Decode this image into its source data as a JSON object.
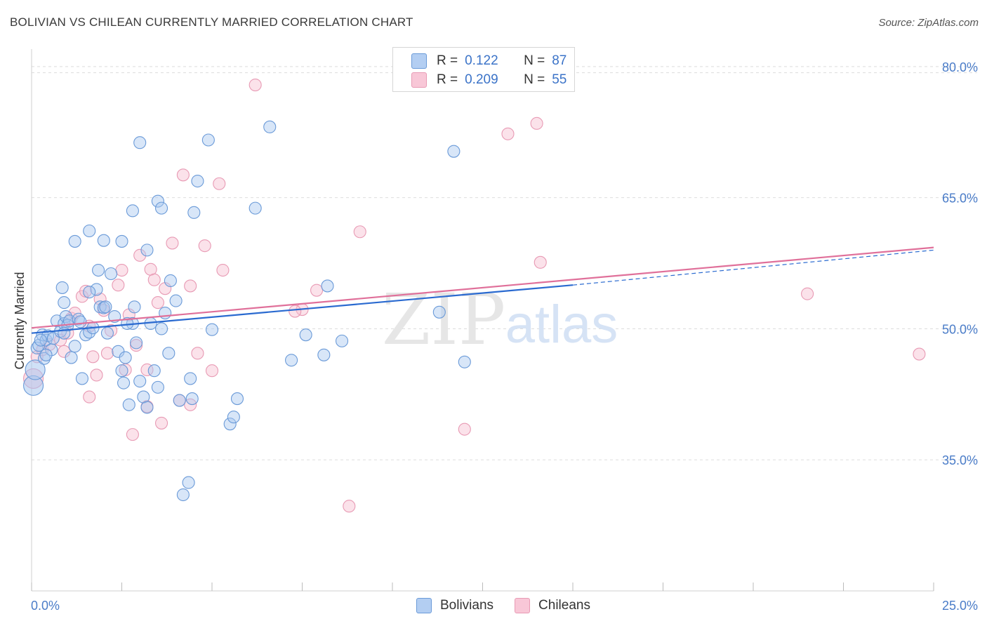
{
  "title": "BOLIVIAN VS CHILEAN CURRENTLY MARRIED CORRELATION CHART",
  "source": "Source: ZipAtlas.com",
  "watermark": {
    "zip": "ZIP",
    "atlas": "atlas"
  },
  "legend": {
    "rows": [
      {
        "r_label": "R =",
        "r_value": "0.122",
        "n_label": "N =",
        "n_value": "87"
      },
      {
        "r_label": "R =",
        "r_value": "0.209",
        "n_label": "N =",
        "n_value": "55"
      }
    ],
    "bottom": [
      "Bolivians",
      "Chileans"
    ]
  },
  "colors": {
    "blue_fill": "#a9c8f0",
    "blue_stroke": "#6a9ad8",
    "blue_line": "#2a6ad0",
    "pink_fill": "#f6bfd1",
    "pink_stroke": "#e89ab4",
    "pink_line": "#e0709a",
    "tick_label": "#4a7cc8",
    "grid": "#dddddd"
  },
  "chart_data": {
    "type": "scatter",
    "title": "BOLIVIAN VS CHILEAN CURRENTLY MARRIED CORRELATION CHART",
    "xlabel": "",
    "ylabel": "Currently Married",
    "xlim": [
      0,
      25
    ],
    "ylim": [
      20,
      82
    ],
    "x_tick_labels": [
      "0.0%",
      "25.0%"
    ],
    "y_ticks": [
      35,
      50,
      65,
      80
    ],
    "y_tick_labels": [
      "35.0%",
      "50.0%",
      "65.0%",
      "80.0%"
    ],
    "grid": true,
    "series": [
      {
        "name": "Bolivians",
        "trend": {
          "x": [
            0,
            15,
            25
          ],
          "y": [
            49.5,
            55.0,
            59.0
          ]
        },
        "points": [
          [
            0.05,
            43.5
          ],
          [
            0.1,
            45.3
          ],
          [
            0.15,
            47.8
          ],
          [
            0.2,
            48.1
          ],
          [
            0.3,
            49.3
          ],
          [
            0.35,
            46.6
          ],
          [
            0.4,
            48.7
          ],
          [
            0.45,
            49.2
          ],
          [
            0.55,
            47.6
          ],
          [
            0.6,
            48.9
          ],
          [
            0.7,
            50.9
          ],
          [
            0.8,
            49.7
          ],
          [
            0.9,
            50.6
          ],
          [
            0.9,
            53.0
          ],
          [
            0.95,
            51.4
          ],
          [
            1.0,
            50.4
          ],
          [
            1.05,
            50.9
          ],
          [
            1.1,
            46.7
          ],
          [
            1.2,
            48.0
          ],
          [
            1.3,
            51.1
          ],
          [
            1.4,
            44.3
          ],
          [
            1.5,
            49.3
          ],
          [
            1.6,
            49.6
          ],
          [
            1.7,
            50.1
          ],
          [
            1.8,
            54.5
          ],
          [
            1.9,
            52.5
          ],
          [
            2.0,
            52.4
          ],
          [
            2.1,
            49.5
          ],
          [
            2.2,
            56.3
          ],
          [
            2.3,
            51.4
          ],
          [
            2.4,
            47.4
          ],
          [
            2.5,
            45.2
          ],
          [
            2.55,
            43.8
          ],
          [
            2.6,
            46.7
          ],
          [
            2.7,
            41.3
          ],
          [
            2.8,
            50.6
          ],
          [
            2.85,
            52.5
          ],
          [
            2.9,
            48.4
          ],
          [
            3.0,
            44.0
          ],
          [
            3.1,
            42.2
          ],
          [
            3.2,
            41.0
          ],
          [
            3.4,
            45.2
          ],
          [
            3.5,
            43.3
          ],
          [
            3.6,
            50.0
          ],
          [
            3.7,
            51.8
          ],
          [
            3.8,
            47.2
          ],
          [
            4.0,
            53.2
          ],
          [
            4.1,
            41.8
          ],
          [
            4.2,
            31.0
          ],
          [
            4.35,
            32.4
          ],
          [
            4.4,
            44.3
          ],
          [
            4.5,
            63.3
          ],
          [
            4.6,
            66.9
          ],
          [
            4.9,
            71.6
          ],
          [
            5.0,
            49.9
          ],
          [
            5.5,
            39.1
          ],
          [
            5.6,
            39.9
          ],
          [
            5.7,
            42.0
          ],
          [
            6.2,
            63.8
          ],
          [
            6.6,
            73.1
          ],
          [
            7.2,
            46.4
          ],
          [
            7.6,
            49.3
          ],
          [
            8.1,
            47.0
          ],
          [
            8.2,
            54.9
          ],
          [
            8.6,
            48.6
          ],
          [
            11.3,
            51.9
          ],
          [
            11.7,
            70.3
          ],
          [
            12.0,
            46.2
          ],
          [
            1.2,
            60.0
          ],
          [
            1.6,
            61.2
          ],
          [
            1.85,
            56.7
          ],
          [
            2.0,
            60.1
          ],
          [
            2.5,
            60.0
          ],
          [
            2.8,
            63.5
          ],
          [
            3.2,
            59.0
          ],
          [
            3.5,
            64.6
          ],
          [
            3.85,
            55.5
          ],
          [
            3.6,
            63.8
          ],
          [
            3.0,
            71.3
          ],
          [
            1.6,
            54.2
          ],
          [
            0.9,
            49.5
          ],
          [
            0.4,
            47.0
          ],
          [
            0.25,
            48.7
          ],
          [
            0.85,
            54.7
          ],
          [
            2.05,
            52.5
          ],
          [
            1.35,
            50.8
          ],
          [
            2.65,
            50.6
          ],
          [
            3.3,
            50.6
          ],
          [
            4.45,
            42.0
          ]
        ]
      },
      {
        "name": "Chileans",
        "trend": {
          "x": [
            0,
            25
          ],
          "y": [
            50.1,
            59.3
          ]
        },
        "points": [
          [
            0.05,
            44.3
          ],
          [
            0.15,
            46.8
          ],
          [
            0.3,
            47.6
          ],
          [
            0.5,
            48.2
          ],
          [
            0.8,
            48.7
          ],
          [
            0.9,
            47.4
          ],
          [
            1.0,
            49.5
          ],
          [
            1.1,
            51.2
          ],
          [
            1.2,
            51.8
          ],
          [
            1.4,
            53.7
          ],
          [
            1.5,
            54.3
          ],
          [
            1.6,
            50.3
          ],
          [
            1.7,
            46.8
          ],
          [
            1.8,
            44.7
          ],
          [
            1.9,
            53.4
          ],
          [
            2.0,
            52.1
          ],
          [
            2.1,
            47.2
          ],
          [
            2.2,
            49.8
          ],
          [
            2.4,
            55.0
          ],
          [
            2.5,
            56.7
          ],
          [
            2.6,
            45.3
          ],
          [
            2.7,
            51.6
          ],
          [
            2.8,
            37.9
          ],
          [
            2.9,
            48.1
          ],
          [
            3.0,
            58.4
          ],
          [
            3.2,
            45.3
          ],
          [
            3.3,
            56.8
          ],
          [
            3.4,
            55.6
          ],
          [
            3.5,
            53.0
          ],
          [
            3.6,
            39.2
          ],
          [
            3.7,
            54.6
          ],
          [
            3.9,
            59.8
          ],
          [
            4.1,
            41.8
          ],
          [
            4.2,
            67.6
          ],
          [
            4.4,
            54.9
          ],
          [
            4.6,
            47.2
          ],
          [
            4.8,
            59.5
          ],
          [
            5.0,
            45.2
          ],
          [
            5.2,
            66.6
          ],
          [
            5.3,
            56.7
          ],
          [
            6.2,
            77.9
          ],
          [
            7.5,
            52.2
          ],
          [
            7.9,
            54.4
          ],
          [
            8.8,
            29.7
          ],
          [
            9.1,
            61.1
          ],
          [
            12.0,
            38.5
          ],
          [
            13.2,
            72.3
          ],
          [
            14.0,
            73.5
          ],
          [
            14.1,
            57.6
          ],
          [
            21.5,
            54.0
          ],
          [
            24.6,
            47.1
          ],
          [
            7.3,
            52.0
          ],
          [
            4.4,
            41.3
          ],
          [
            3.2,
            41.1
          ],
          [
            1.6,
            42.2
          ]
        ]
      }
    ]
  }
}
